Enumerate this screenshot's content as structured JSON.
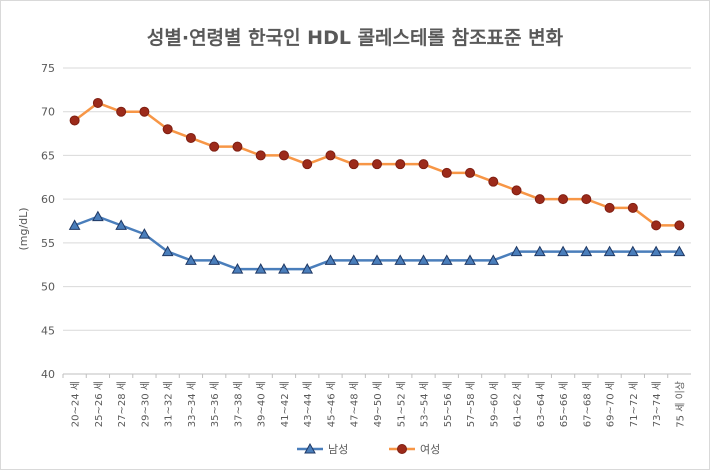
{
  "chart_data": {
    "type": "line",
    "title": "성별·연령별 한국인 HDL 콜레스테롤 참조표준 변화",
    "xlabel": "",
    "ylabel": "(mg/dL)",
    "ylim": [
      40,
      75
    ],
    "yticks": [
      40,
      45,
      50,
      55,
      60,
      65,
      70,
      75
    ],
    "grid": true,
    "legend_position": "bottom",
    "categories": [
      "20~24 세",
      "25~26 세",
      "27~28 세",
      "29~30 세",
      "31~32 세",
      "33~34 세",
      "35~36 세",
      "37~38 세",
      "39~40 세",
      "41~42 세",
      "43~44 세",
      "45~46 세",
      "47~48 세",
      "49~50 세",
      "51~52 세",
      "53~54 세",
      "55~56 세",
      "57~58 세",
      "59~60 세",
      "61~62 세",
      "63~64 세",
      "65~66 세",
      "67~68 세",
      "69~70 세",
      "71~72 세",
      "73~74 세",
      "75 세 이상"
    ],
    "series": [
      {
        "name": "남성",
        "color": "#4a7ebb",
        "marker": "triangle",
        "marker_color": "#1f3864",
        "values": [
          57,
          58,
          57,
          56,
          54,
          53,
          53,
          52,
          52,
          52,
          52,
          53,
          53,
          53,
          53,
          53,
          53,
          53,
          53,
          54,
          54,
          54,
          54,
          54,
          54,
          54,
          54
        ]
      },
      {
        "name": "여성",
        "color": "#f79646",
        "marker": "circle",
        "marker_color": "#9c2a1a",
        "values": [
          69,
          71,
          70,
          70,
          68,
          67,
          66,
          66,
          65,
          65,
          64,
          65,
          64,
          64,
          64,
          64,
          63,
          63,
          62,
          61,
          60,
          60,
          60,
          59,
          59,
          57,
          57
        ]
      }
    ]
  }
}
